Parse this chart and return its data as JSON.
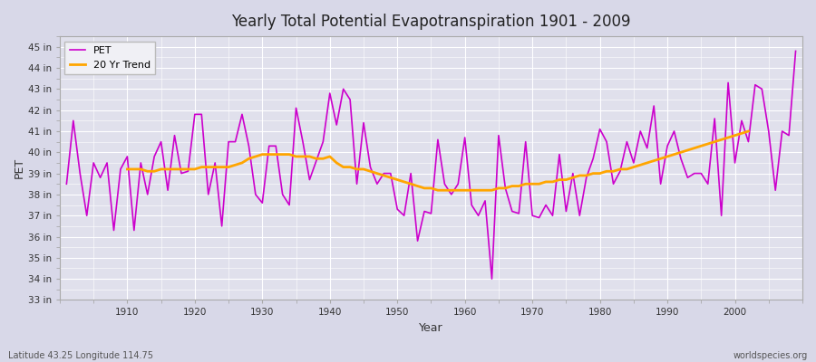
{
  "title": "Yearly Total Potential Evapotranspiration 1901 - 2009",
  "xlabel": "Year",
  "ylabel": "PET",
  "lat_lon_label": "Latitude 43.25 Longitude 114.75",
  "watermark": "worldspecies.org",
  "pet_color": "#CC00CC",
  "trend_color": "#FFA500",
  "fig_background_color": "#D8D8E8",
  "plot_background_color": "#E0E0EC",
  "grid_color": "#FFFFFF",
  "ylim": [
    33,
    45.5
  ],
  "ytick_labels": [
    "33 in",
    "34 in",
    "35 in",
    "36 in",
    "37 in",
    "38 in",
    "39 in",
    "40 in",
    "41 in",
    "42 in",
    "43 in",
    "44 in",
    "45 in"
  ],
  "ytick_values": [
    33,
    34,
    35,
    36,
    37,
    38,
    39,
    40,
    41,
    42,
    43,
    44,
    45
  ],
  "years": [
    1901,
    1902,
    1903,
    1904,
    1905,
    1906,
    1907,
    1908,
    1909,
    1910,
    1911,
    1912,
    1913,
    1914,
    1915,
    1916,
    1917,
    1918,
    1919,
    1920,
    1921,
    1922,
    1923,
    1924,
    1925,
    1926,
    1927,
    1928,
    1929,
    1930,
    1931,
    1932,
    1933,
    1934,
    1935,
    1936,
    1937,
    1938,
    1939,
    1940,
    1941,
    1942,
    1943,
    1944,
    1945,
    1946,
    1947,
    1948,
    1949,
    1950,
    1951,
    1952,
    1953,
    1954,
    1955,
    1956,
    1957,
    1958,
    1959,
    1960,
    1961,
    1962,
    1963,
    1964,
    1965,
    1966,
    1967,
    1968,
    1969,
    1970,
    1971,
    1972,
    1973,
    1974,
    1975,
    1976,
    1977,
    1978,
    1979,
    1980,
    1981,
    1982,
    1983,
    1984,
    1985,
    1986,
    1987,
    1988,
    1989,
    1990,
    1991,
    1992,
    1993,
    1994,
    1995,
    1996,
    1997,
    1998,
    1999,
    2000,
    2001,
    2002,
    2003,
    2004,
    2005,
    2006,
    2007,
    2008,
    2009
  ],
  "pet": [
    38.5,
    41.5,
    39.0,
    37.0,
    39.5,
    38.8,
    39.5,
    36.3,
    39.2,
    39.8,
    36.3,
    39.5,
    38.0,
    39.8,
    40.5,
    38.2,
    40.8,
    39.0,
    39.1,
    41.8,
    41.8,
    38.0,
    39.5,
    36.5,
    40.5,
    40.5,
    41.8,
    40.3,
    38.0,
    37.6,
    40.3,
    40.3,
    38.0,
    37.5,
    42.1,
    40.5,
    38.7,
    39.6,
    40.5,
    42.8,
    41.3,
    43.0,
    42.5,
    38.5,
    41.4,
    39.3,
    38.5,
    39.0,
    39.0,
    37.3,
    37.0,
    39.0,
    35.8,
    37.2,
    37.1,
    40.6,
    38.5,
    38.0,
    38.5,
    40.7,
    37.5,
    37.0,
    37.7,
    34.0,
    40.8,
    38.3,
    37.2,
    37.1,
    40.5,
    37.0,
    36.9,
    37.5,
    37.0,
    39.9,
    37.2,
    39.0,
    37.0,
    38.8,
    39.7,
    41.1,
    40.5,
    38.5,
    39.1,
    40.5,
    39.5,
    41.0,
    40.2,
    42.2,
    38.5,
    40.3,
    41.0,
    39.7,
    38.8,
    39.0,
    39.0,
    38.5,
    41.6,
    37.0,
    43.3,
    39.5,
    41.5,
    40.5,
    43.2,
    43.0,
    41.0,
    38.2,
    41.0,
    40.8,
    44.8
  ],
  "trend": [
    null,
    null,
    null,
    null,
    null,
    null,
    null,
    null,
    null,
    39.2,
    39.2,
    39.2,
    39.1,
    39.1,
    39.2,
    39.2,
    39.2,
    39.2,
    39.2,
    39.2,
    39.3,
    39.3,
    39.3,
    39.3,
    39.3,
    39.4,
    39.5,
    39.7,
    39.8,
    39.9,
    39.9,
    39.9,
    39.9,
    39.9,
    39.8,
    39.8,
    39.8,
    39.7,
    39.7,
    39.8,
    39.5,
    39.3,
    39.3,
    39.2,
    39.2,
    39.1,
    39.0,
    38.9,
    38.8,
    38.7,
    38.6,
    38.5,
    38.4,
    38.3,
    38.3,
    38.2,
    38.2,
    38.2,
    38.2,
    38.2,
    38.2,
    38.2,
    38.2,
    38.2,
    38.3,
    38.3,
    38.4,
    38.4,
    38.5,
    38.5,
    38.5,
    38.6,
    38.6,
    38.7,
    38.7,
    38.8,
    38.9,
    38.9,
    39.0,
    39.0,
    39.1,
    39.1,
    39.2,
    39.2,
    39.3,
    39.4,
    39.5,
    39.6,
    39.7,
    39.8,
    39.9,
    40.0,
    40.1,
    40.2,
    40.3,
    40.4,
    40.5,
    40.6,
    40.7,
    40.8,
    40.9,
    41.0,
    null,
    null,
    null,
    null,
    null,
    null,
    null
  ]
}
